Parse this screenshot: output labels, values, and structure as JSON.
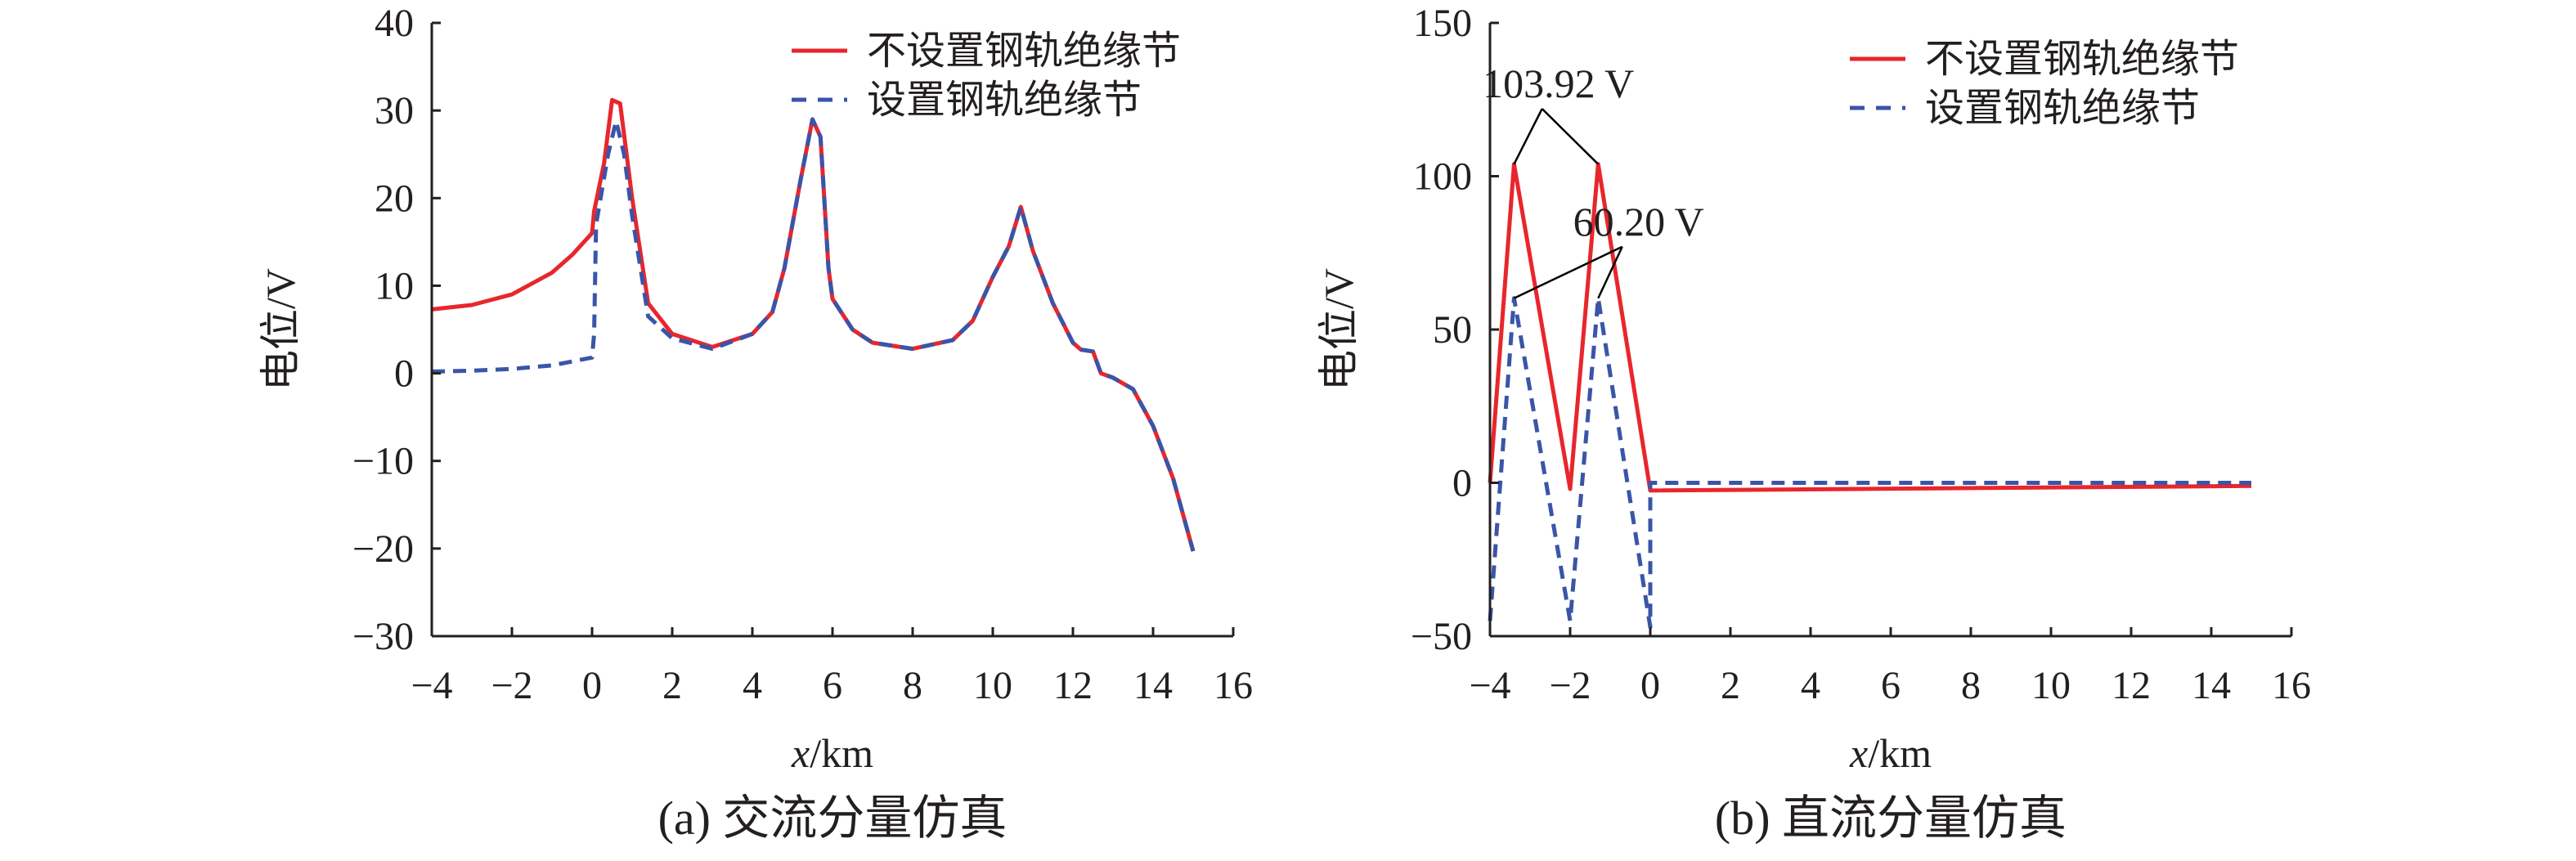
{
  "colors": {
    "red": "#e8262d",
    "blue": "#3a55a8",
    "axis": "#231f20"
  },
  "chart_data": [
    {
      "type": "line",
      "caption": "(a) 交流分量仿真",
      "xlabel_italic": "x",
      "xlabel_unit": "/km",
      "ylabel": "电位/V",
      "xlim": [
        -4,
        16
      ],
      "ylim": [
        -30,
        40
      ],
      "xticks": [
        -4,
        -2,
        0,
        2,
        4,
        6,
        8,
        10,
        12,
        14,
        16
      ],
      "yticks": [
        -30,
        -20,
        -10,
        0,
        10,
        20,
        30,
        40
      ],
      "legend_position": "top-right",
      "series": [
        {
          "name": "不设置钢轨绝缘节",
          "style": "solid",
          "color": "#e8262d",
          "x": [
            -4,
            -3,
            -2,
            -1,
            -0.5,
            0,
            0.05,
            0.3,
            0.5,
            0.7,
            1,
            1.4,
            2,
            3,
            4,
            4.5,
            4.8,
            5.2,
            5.5,
            5.7,
            5.9,
            6,
            6.5,
            7,
            8,
            9,
            9.5,
            10,
            10.4,
            10.6,
            10.7,
            11,
            11.5,
            12,
            12.2,
            12.5,
            12.7,
            13,
            13.5,
            14,
            14.5,
            15
          ],
          "y": [
            7.3,
            7.8,
            9,
            11.5,
            13.5,
            16,
            18.5,
            24,
            31.2,
            30.8,
            20,
            8,
            4.5,
            3,
            4.5,
            7,
            12,
            22,
            29,
            27,
            12,
            8.5,
            5,
            3.5,
            2.8,
            3.8,
            6,
            11,
            14.5,
            17.5,
            19,
            14,
            8,
            3.5,
            2.7,
            2.5,
            0,
            -0.5,
            -1.8,
            -6,
            -12,
            -20.3
          ]
        },
        {
          "name": "设置钢轨绝缘节",
          "style": "dashed",
          "color": "#3a55a8",
          "x": [
            -4,
            -3,
            -2,
            -1,
            0,
            0.05,
            0.1,
            0.4,
            0.6,
            0.8,
            1,
            1.4,
            2,
            3,
            4,
            4.5,
            4.8,
            5.2,
            5.5,
            5.7,
            5.9,
            6,
            6.5,
            7,
            8,
            9,
            9.5,
            10,
            10.4,
            10.6,
            10.7,
            11,
            11.5,
            12,
            12.2,
            12.5,
            12.7,
            13,
            13.5,
            14,
            14.5,
            15
          ],
          "y": [
            0.2,
            0.3,
            0.5,
            0.9,
            1.8,
            4.5,
            17,
            25,
            28.8,
            25,
            18,
            6.5,
            4,
            2.8,
            4.5,
            7,
            12,
            22,
            29,
            27,
            12,
            8.5,
            5,
            3.5,
            2.8,
            3.8,
            6,
            11,
            14.5,
            17.5,
            19,
            14,
            8,
            3.5,
            2.7,
            2.5,
            0,
            -0.5,
            -1.8,
            -6,
            -12,
            -20.3
          ]
        }
      ]
    },
    {
      "type": "line",
      "caption": "(b) 直流分量仿真",
      "xlabel_italic": "x",
      "xlabel_unit": "/km",
      "ylabel": "电位/V",
      "xlim": [
        -4,
        16
      ],
      "ylim": [
        -50,
        150
      ],
      "xticks": [
        -4,
        -2,
        0,
        2,
        4,
        6,
        8,
        10,
        12,
        14,
        16
      ],
      "yticks": [
        -50,
        0,
        50,
        100,
        150
      ],
      "legend_position": "top-right",
      "series": [
        {
          "name": "不设置钢轨绝缘节",
          "style": "solid",
          "color": "#e8262d",
          "x": [
            -4,
            -3.4,
            -2,
            -1.3,
            0,
            15
          ],
          "y": [
            0,
            103.92,
            -2,
            103.92,
            -2.5,
            -1
          ]
        },
        {
          "name": "设置钢轨绝缘节",
          "style": "dashed",
          "color": "#3a55a8",
          "x": [
            -4,
            -3.4,
            -2,
            -1.3,
            0,
            0,
            15
          ],
          "y": [
            -45,
            60.2,
            -45,
            60.2,
            -47,
            0,
            0
          ]
        }
      ],
      "annotations": [
        {
          "text": "103.92 V",
          "anchor": [
            -2.7,
            122
          ],
          "targets": [
            [
              -3.4,
              103.92
            ],
            [
              -1.3,
              103.92
            ]
          ]
        },
        {
          "text": "60.20 V",
          "anchor": [
            -0.7,
            77
          ],
          "targets": [
            [
              -3.4,
              60.2
            ],
            [
              -1.3,
              60.2
            ]
          ]
        }
      ]
    }
  ]
}
